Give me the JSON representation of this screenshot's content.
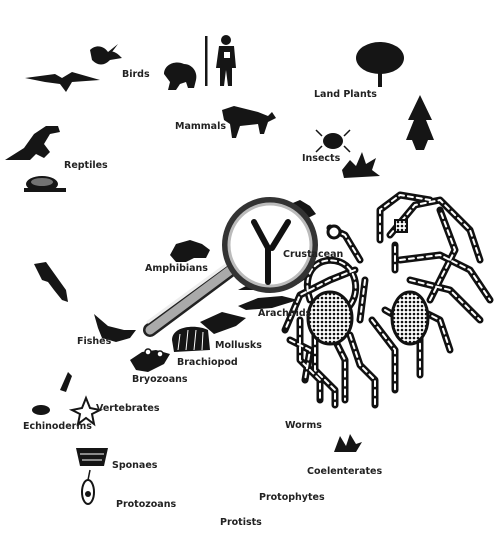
{
  "labels": {
    "birds": "Birds",
    "mammals": "Mammals",
    "land_plants": "Land Plants",
    "reptiles": "Reptiles",
    "insects": "Insects",
    "amphibians": "Amphibians",
    "crustacean": "Crustacean",
    "arachnids": "Arachnids",
    "fishes": "Fishes",
    "mollusks": "Mollusks",
    "brachiopod": "Brachiopod",
    "bryozoans": "Bryozoans",
    "vertebrates": "Vertebrates",
    "echinoderms": "Echinoderms",
    "worms": "Worms",
    "sponges": "Sponaes",
    "coelenterates": "Coelenterates",
    "protozoans": "Protozoans",
    "protophytes": "Protophytes",
    "protists": "Protists"
  },
  "icons": [
    "bird-icon",
    "pterosaur-icon",
    "gorilla-icon",
    "human-icon",
    "tree-icon",
    "conifer-icon",
    "thylacine-icon",
    "beetle-icon",
    "plant-icon",
    "dinosaur-icon",
    "turtle-icon",
    "scorpion-icon",
    "frog-icon",
    "crab-icon",
    "seahorse-icon",
    "fish-icon",
    "shell-icon",
    "cone-shell-icon",
    "bryozoan-icon",
    "starfish-icon",
    "sponge-icon",
    "protozoan-icon",
    "coral-icon",
    "magnifier-icon",
    "octopus-icon"
  ]
}
